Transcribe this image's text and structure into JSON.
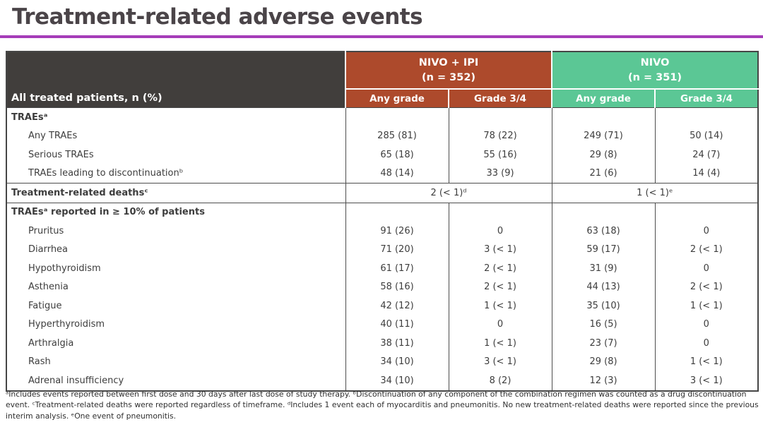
{
  "title": "Treatment-related adverse events",
  "colors": {
    "title_text": "#4a4448",
    "accent_purple": "#a53db8",
    "header_dark": "#413e3c",
    "nivo_ipi_red": "#ad4a2c",
    "nivo_green": "#5bc795",
    "grid_line": "#4d4d4d"
  },
  "table": {
    "corner_label": "All treated patients, n (%)",
    "groups": [
      {
        "label": "NIVO + IPI",
        "n": "(n = 352)"
      },
      {
        "label": "NIVO",
        "n": "(n = 351)"
      }
    ],
    "subheaders": [
      "Any grade",
      "Grade 3/4",
      "Any grade",
      "Grade 3/4"
    ],
    "rows": [
      {
        "type": "section",
        "label": "TRAEsᵃ"
      },
      {
        "type": "data",
        "label": "Any TRAEs",
        "values": [
          "285 (81)",
          "78 (22)",
          "249 (71)",
          "50 (14)"
        ]
      },
      {
        "type": "data",
        "label": "Serious TRAEs",
        "values": [
          "65 (18)",
          "55 (16)",
          "29 (8)",
          "24 (7)"
        ]
      },
      {
        "type": "data",
        "label": "TRAEs leading to discontinuationᵇ",
        "values": [
          "48 (14)",
          "33 (9)",
          "21 (6)",
          "14 (4)"
        ]
      },
      {
        "type": "span",
        "label": "Treatment-related deathsᶜ",
        "values": [
          "2 (< 1)ᵈ",
          "1 (< 1)ᵉ"
        ]
      },
      {
        "type": "section",
        "label": "TRAEsᵃ reported in ≥ 10% of patients"
      },
      {
        "type": "data",
        "label": "Pruritus",
        "values": [
          "91 (26)",
          "0",
          "63 (18)",
          "0"
        ]
      },
      {
        "type": "data",
        "label": "Diarrhea",
        "values": [
          "71 (20)",
          "3 (< 1)",
          "59 (17)",
          "2 (< 1)"
        ]
      },
      {
        "type": "data",
        "label": "Hypothyroidism",
        "values": [
          "61 (17)",
          "2 (< 1)",
          "31 (9)",
          "0"
        ]
      },
      {
        "type": "data",
        "label": "Asthenia",
        "values": [
          "58 (16)",
          "2 (< 1)",
          "44 (13)",
          "2 (< 1)"
        ]
      },
      {
        "type": "data",
        "label": "Fatigue",
        "values": [
          "42 (12)",
          "1 (< 1)",
          "35 (10)",
          "1 (< 1)"
        ]
      },
      {
        "type": "data",
        "label": "Hyperthyroidism",
        "values": [
          "40 (11)",
          "0",
          "16 (5)",
          "0"
        ]
      },
      {
        "type": "data",
        "label": "Arthralgia",
        "values": [
          "38 (11)",
          "1 (< 1)",
          "23 (7)",
          "0"
        ]
      },
      {
        "type": "data",
        "label": "Rash",
        "values": [
          "34 (10)",
          "3 (< 1)",
          "29 (8)",
          "1 (< 1)"
        ]
      },
      {
        "type": "data",
        "label": "Adrenal insufficiency",
        "values": [
          "34 (10)",
          "8 (2)",
          "12 (3)",
          "3 (< 1)"
        ]
      }
    ]
  },
  "footnotes": "ᵃIncludes events reported between first dose and 30 days after last dose of study therapy. ᵇDiscontinuation of any component of the combination regimen was counted as a drug discontinuation event. ᶜTreatment-related deaths were reported regardless of timeframe. ᵈIncludes 1 event each of myocarditis and pneumonitis. No new treatment-related deaths were reported since the previous interim analysis. ᵉOne event of pneumonitis."
}
